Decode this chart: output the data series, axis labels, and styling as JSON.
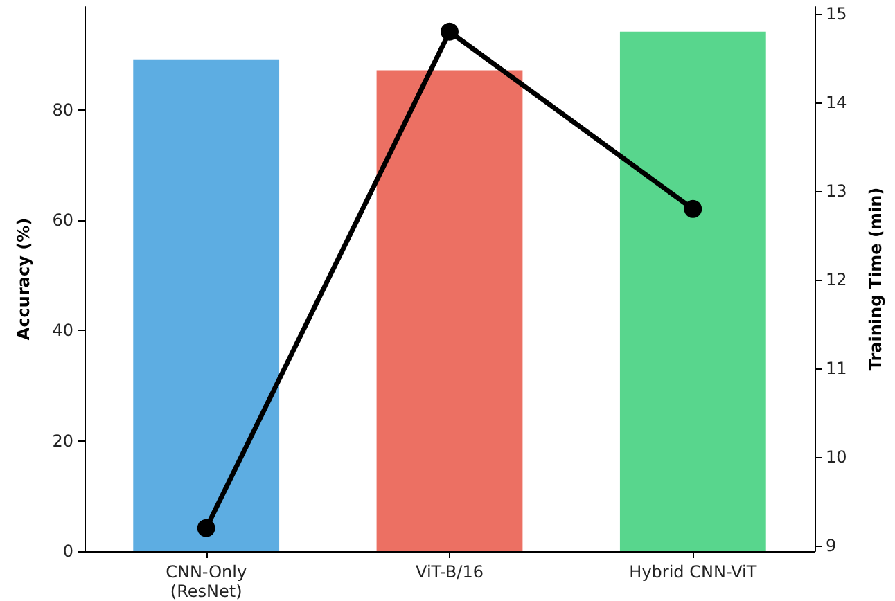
{
  "chart_data": {
    "type": "bar",
    "ylabel": "Accuracy (%)",
    "y2label": "Training Time (min)",
    "categories": [
      "CNN-Only\n(ResNet)",
      "ViT-B/16",
      "Hybrid CNN-ViT"
    ],
    "series": [
      {
        "colors": [
          "#5dade2",
          "#ec7063",
          "#58d68d"
        ],
        "values": [
          89.2,
          87.2,
          94.2
        ]
      },
      {
        "type": "line",
        "axis": "y2",
        "color": "#000000",
        "marker": "circle",
        "values": [
          9.2,
          14.8,
          12.8
        ]
      }
    ],
    "ylim": [
      0,
      98.7
    ],
    "yticks": [
      0,
      20,
      40,
      60,
      80
    ],
    "y2lim": [
      8.94,
      15.08
    ],
    "y2ticks": [
      9,
      10,
      11,
      12,
      13,
      14,
      15
    ],
    "grid": false
  }
}
